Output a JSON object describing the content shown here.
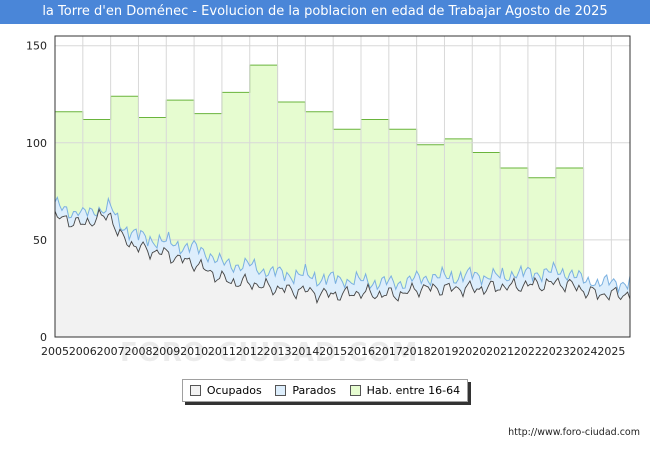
{
  "header": {
    "title": "la Torre d'en Doménec - Evolucion de la poblacion en edad de Trabajar Agosto de 2025"
  },
  "watermark": "FORO-CIUDAD.COM",
  "credit": "http://www.foro-ciudad.com",
  "colors": {
    "hab_fill": "#e6fcd0",
    "hab_line": "#6ab43c",
    "par_fill": "#ddeefc",
    "par_line": "#7ab0e0",
    "ocu_fill": "#f2f2f2",
    "ocu_line": "#444444",
    "title_bg": "#4a86d8"
  },
  "legend": [
    {
      "label": "Ocupados",
      "color": "#f2f2f2"
    },
    {
      "label": "Parados",
      "color": "#ddeefc"
    },
    {
      "label": "Hab. entre 16-64",
      "color": "#e6fcd0"
    }
  ],
  "chart_data": {
    "type": "area",
    "xlim": [
      2005,
      2025.67
    ],
    "ylim": [
      0,
      155
    ],
    "yticks": [
      0,
      50,
      100,
      150
    ],
    "xticks": [
      "2005",
      "2006",
      "2007",
      "2008",
      "2009",
      "2010",
      "2011",
      "2012",
      "2013",
      "2014",
      "2015",
      "2016",
      "2017",
      "2018",
      "2019",
      "2020",
      "2021",
      "2022",
      "2023",
      "2024",
      "2025"
    ],
    "grid": true,
    "legend_position": "bottom",
    "hab_entre_16_64": {
      "years": [
        2005,
        2006,
        2007,
        2008,
        2009,
        2010,
        2011,
        2012,
        2013,
        2014,
        2015,
        2016,
        2017,
        2018,
        2019,
        2020,
        2021,
        2022,
        2023
      ],
      "values": [
        116,
        112,
        124,
        113,
        122,
        115,
        126,
        140,
        121,
        116,
        107,
        112,
        107,
        99,
        102,
        95,
        87,
        82,
        87
      ]
    },
    "parados_total_activos": {
      "anchor_x": [
        2005,
        2005.5,
        2006,
        2006.5,
        2007,
        2007.3,
        2008,
        2008.5,
        2009,
        2009.5,
        2010,
        2010.5,
        2011,
        2011.5,
        2012,
        2012.5,
        2013,
        2013.5,
        2014,
        2014.5,
        2015,
        2015.5,
        2016,
        2016.5,
        2017,
        2017.5,
        2018,
        2018.5,
        2019,
        2019.5,
        2020,
        2020.5,
        2021,
        2021.5,
        2022,
        2022.5,
        2023,
        2023.5,
        2024,
        2024.5,
        2025,
        2025.67
      ],
      "anchor_y": [
        68,
        65,
        63,
        65,
        67,
        58,
        52,
        50,
        49,
        47,
        46,
        43,
        38,
        37,
        37,
        34,
        33,
        32,
        32,
        30,
        30,
        29,
        29,
        28,
        28,
        28,
        30,
        31,
        31,
        31,
        32,
        31,
        31,
        32,
        33,
        33,
        34,
        33,
        29,
        28,
        28,
        28
      ]
    },
    "ocupados": {
      "anchor_x": [
        2005,
        2005.5,
        2006,
        2006.5,
        2007,
        2007.3,
        2008,
        2008.5,
        2009,
        2009.5,
        2010,
        2010.5,
        2011,
        2011.5,
        2012,
        2012.5,
        2013,
        2013.5,
        2014,
        2014.5,
        2015,
        2015.5,
        2016,
        2016.5,
        2017,
        2017.5,
        2018,
        2018.5,
        2019,
        2019.5,
        2020,
        2020.5,
        2021,
        2021.5,
        2022,
        2022.5,
        2023,
        2023.5,
        2024,
        2024.5,
        2025,
        2025.67
      ],
      "anchor_y": [
        62,
        60,
        58,
        61,
        63,
        52,
        46,
        44,
        43,
        40,
        38,
        34,
        30,
        28,
        28,
        26,
        25,
        24,
        24,
        22,
        22,
        22,
        23,
        22,
        22,
        22,
        25,
        25,
        25,
        25,
        25,
        25,
        26,
        26,
        27,
        27,
        28,
        27,
        24,
        22,
        22,
        22
      ]
    }
  }
}
